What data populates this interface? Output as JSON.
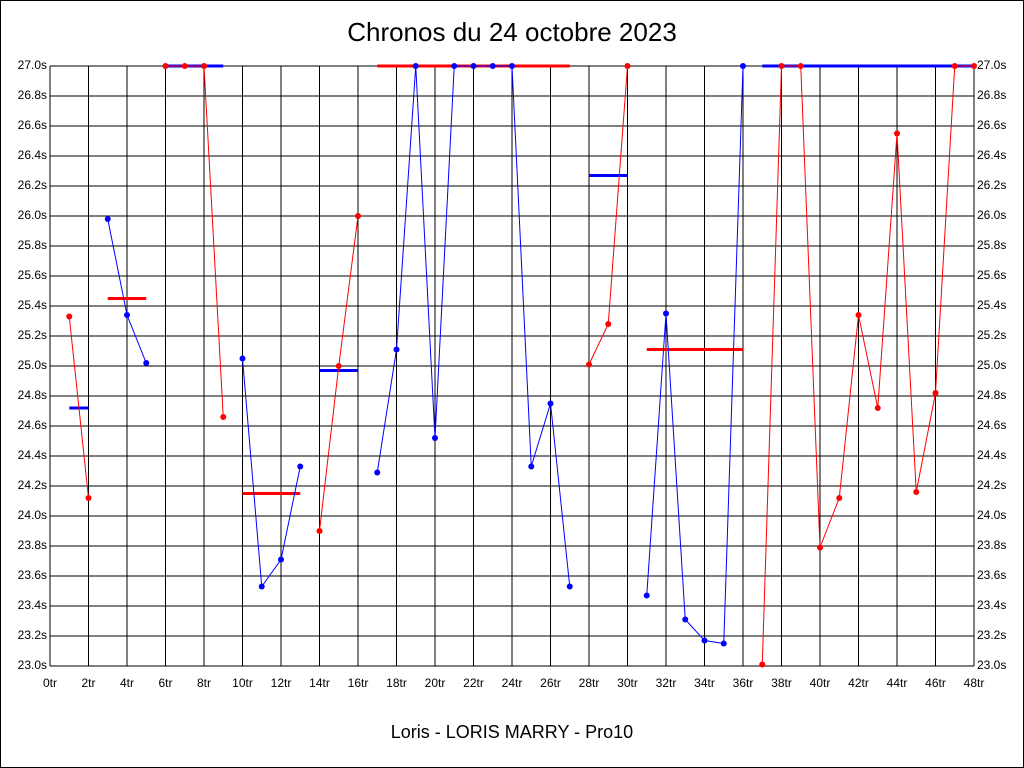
{
  "chart_data": {
    "type": "line",
    "title": "Chronos du 24 octobre 2023",
    "x_label": "Loris - LORIS MARRY - Pro10",
    "xlim": [
      0,
      48
    ],
    "ylim": [
      23.0,
      27.0
    ],
    "grid": true,
    "xticks": [
      {
        "value": 0,
        "label": "0tr"
      },
      {
        "value": 2,
        "label": "2tr"
      },
      {
        "value": 4,
        "label": "4tr"
      },
      {
        "value": 6,
        "label": "6tr"
      },
      {
        "value": 8,
        "label": "8tr"
      },
      {
        "value": 10,
        "label": "10tr"
      },
      {
        "value": 12,
        "label": "12tr"
      },
      {
        "value": 14,
        "label": "14tr"
      },
      {
        "value": 16,
        "label": "16tr"
      },
      {
        "value": 18,
        "label": "18tr"
      },
      {
        "value": 20,
        "label": "20tr"
      },
      {
        "value": 22,
        "label": "22tr"
      },
      {
        "value": 24,
        "label": "24tr"
      },
      {
        "value": 26,
        "label": "26tr"
      },
      {
        "value": 28,
        "label": "28tr"
      },
      {
        "value": 30,
        "label": "30tr"
      },
      {
        "value": 32,
        "label": "32tr"
      },
      {
        "value": 34,
        "label": "34tr"
      },
      {
        "value": 36,
        "label": "36tr"
      },
      {
        "value": 38,
        "label": "38tr"
      },
      {
        "value": 40,
        "label": "40tr"
      },
      {
        "value": 42,
        "label": "42tr"
      },
      {
        "value": 44,
        "label": "44tr"
      },
      {
        "value": 46,
        "label": "46tr"
      },
      {
        "value": 48,
        "label": "48tr"
      }
    ],
    "yticks": [
      {
        "value": 23.0,
        "label": "23.0s"
      },
      {
        "value": 23.2,
        "label": "23.2s"
      },
      {
        "value": 23.4,
        "label": "23.4s"
      },
      {
        "value": 23.6,
        "label": "23.6s"
      },
      {
        "value": 23.8,
        "label": "23.8s"
      },
      {
        "value": 24.0,
        "label": "24.0s"
      },
      {
        "value": 24.2,
        "label": "24.2s"
      },
      {
        "value": 24.4,
        "label": "24.4s"
      },
      {
        "value": 24.6,
        "label": "24.6s"
      },
      {
        "value": 24.8,
        "label": "24.8s"
      },
      {
        "value": 25.0,
        "label": "25.0s"
      },
      {
        "value": 25.2,
        "label": "25.2s"
      },
      {
        "value": 25.4,
        "label": "25.4s"
      },
      {
        "value": 25.6,
        "label": "25.6s"
      },
      {
        "value": 25.8,
        "label": "25.8s"
      },
      {
        "value": 26.0,
        "label": "26.0s"
      },
      {
        "value": 26.2,
        "label": "26.2s"
      },
      {
        "value": 26.4,
        "label": "26.4s"
      },
      {
        "value": 26.6,
        "label": "26.6s"
      },
      {
        "value": 26.8,
        "label": "26.8s"
      },
      {
        "value": 27.0,
        "label": "27.0s"
      }
    ],
    "series": [
      {
        "color": "#ff0000",
        "x": [
          1,
          2
        ],
        "values": [
          25.33,
          24.12
        ]
      },
      {
        "color": "#0000ff",
        "x": [
          3,
          4,
          5
        ],
        "values": [
          25.98,
          25.34,
          25.02
        ]
      },
      {
        "color": "#ff0000",
        "x": [
          6,
          7,
          8,
          9
        ],
        "values": [
          27.0,
          27.0,
          27.0,
          24.66
        ]
      },
      {
        "color": "#0000ff",
        "x": [
          10,
          11,
          12,
          13
        ],
        "values": [
          25.05,
          23.53,
          23.71,
          24.33
        ]
      },
      {
        "color": "#ff0000",
        "x": [
          14,
          15,
          16
        ],
        "values": [
          23.9,
          25.0,
          26.0
        ]
      },
      {
        "color": "#0000ff",
        "x": [
          17,
          18,
          19,
          20,
          21,
          22,
          23,
          24,
          25,
          26,
          27
        ],
        "values": [
          24.29,
          25.11,
          27.0,
          24.52,
          27.0,
          27.0,
          27.0,
          27.0,
          24.33,
          24.75,
          23.53
        ]
      },
      {
        "color": "#ff0000",
        "x": [
          28,
          29,
          30
        ],
        "values": [
          25.01,
          25.28,
          27.0
        ]
      },
      {
        "color": "#0000ff",
        "x": [
          31,
          32,
          33,
          34,
          35,
          36
        ],
        "values": [
          23.47,
          25.35,
          23.31,
          23.17,
          23.15,
          27.0
        ]
      },
      {
        "color": "#ff0000",
        "x": [
          37,
          38,
          39,
          40,
          41,
          42,
          43,
          44,
          45,
          46,
          47,
          48
        ],
        "values": [
          23.01,
          27.0,
          27.0,
          23.79,
          24.12,
          25.34,
          24.72,
          26.55,
          24.16,
          24.82,
          27.0,
          27.0
        ]
      }
    ],
    "averages": [
      {
        "color": "#0000ff",
        "x": [
          1,
          2
        ],
        "value": 24.72
      },
      {
        "color": "#ff0000",
        "x": [
          3,
          5
        ],
        "value": 25.45
      },
      {
        "color": "#0000ff",
        "x": [
          6,
          9
        ],
        "value": 27.0
      },
      {
        "color": "#ff0000",
        "x": [
          10,
          13
        ],
        "value": 24.15
      },
      {
        "color": "#0000ff",
        "x": [
          14,
          16
        ],
        "value": 24.97
      },
      {
        "color": "#ff0000",
        "x": [
          17,
          27
        ],
        "value": 27.0
      },
      {
        "color": "#0000ff",
        "x": [
          28,
          30
        ],
        "value": 26.27
      },
      {
        "color": "#ff0000",
        "x": [
          31,
          36
        ],
        "value": 25.11
      },
      {
        "color": "#0000ff",
        "x": [
          37,
          48
        ],
        "value": 27.0
      }
    ]
  }
}
